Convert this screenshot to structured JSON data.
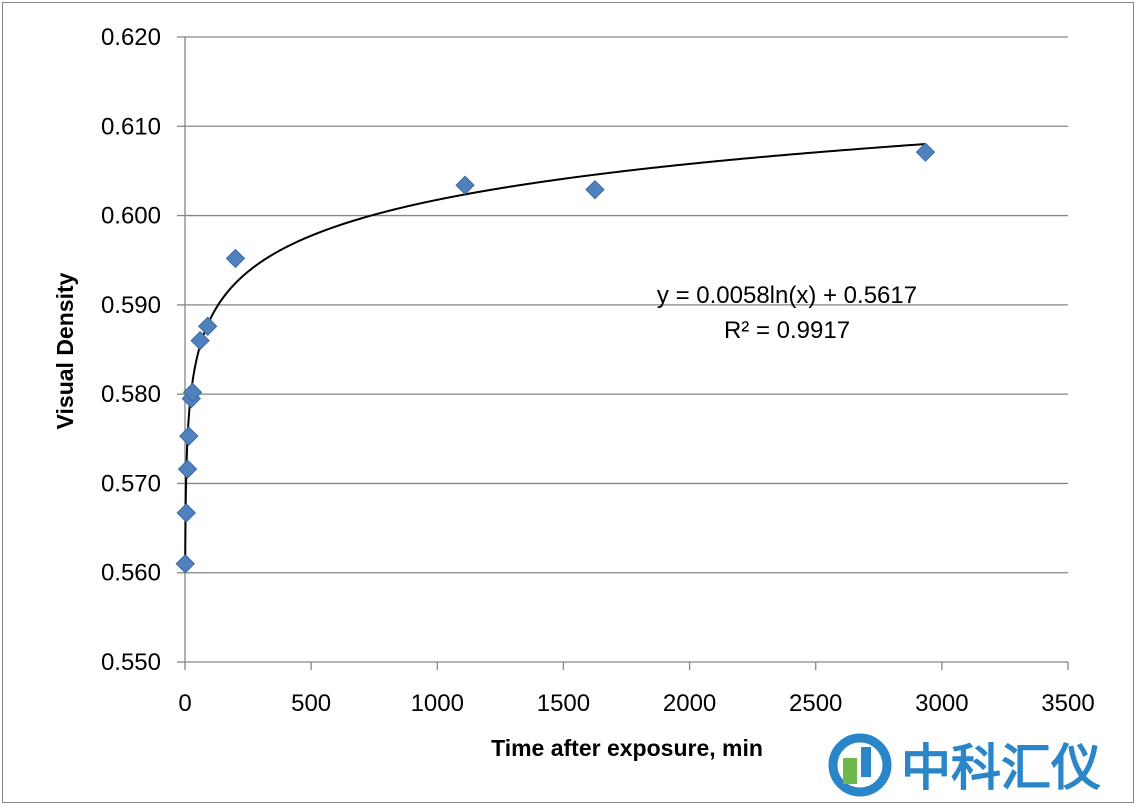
{
  "chart_data": {
    "type": "scatter",
    "title": "",
    "xlabel": "Time after exposure, min",
    "ylabel": "Visual Density",
    "xlim": [
      0,
      3500
    ],
    "ylim": [
      0.55,
      0.62
    ],
    "x_ticks": [
      0,
      500,
      1000,
      1500,
      2000,
      2500,
      3000,
      3500
    ],
    "x_tick_labels": [
      "0",
      "500",
      "1000",
      "1500",
      "2000",
      "2500",
      "3000",
      "3500"
    ],
    "y_ticks": [
      0.55,
      0.56,
      0.57,
      0.58,
      0.59,
      0.6,
      0.61,
      0.62
    ],
    "y_tick_labels": [
      "0.550",
      "0.560",
      "0.570",
      "0.580",
      "0.590",
      "0.600",
      "0.610",
      "0.620"
    ],
    "grid": "horizontal",
    "legend": "none",
    "series": [
      {
        "marker": "diamond",
        "color": "#4f81bd",
        "points": [
          {
            "x": 1,
            "y": 0.561
          },
          {
            "x": 5,
            "y": 0.5667
          },
          {
            "x": 10,
            "y": 0.5716
          },
          {
            "x": 15,
            "y": 0.5753
          },
          {
            "x": 25,
            "y": 0.5795
          },
          {
            "x": 30,
            "y": 0.5802
          },
          {
            "x": 60,
            "y": 0.586
          },
          {
            "x": 90,
            "y": 0.5876
          },
          {
            "x": 200,
            "y": 0.5952
          },
          {
            "x": 1110,
            "y": 0.6034
          },
          {
            "x": 1625,
            "y": 0.6029
          },
          {
            "x": 2935,
            "y": 0.6071
          }
        ]
      }
    ],
    "trendline": {
      "type": "logarithmic",
      "a": 0.0058,
      "b": 0.5617,
      "x_range": [
        1,
        2935
      ],
      "color": "#000000"
    },
    "annotations": [
      "y = 0.0058ln(x) + 0.5617",
      "R² = 0.9917"
    ]
  },
  "watermark": {
    "text": "中科汇仪",
    "colors": {
      "ring": "#2a86c8",
      "leaf": "#6fb84a"
    }
  }
}
